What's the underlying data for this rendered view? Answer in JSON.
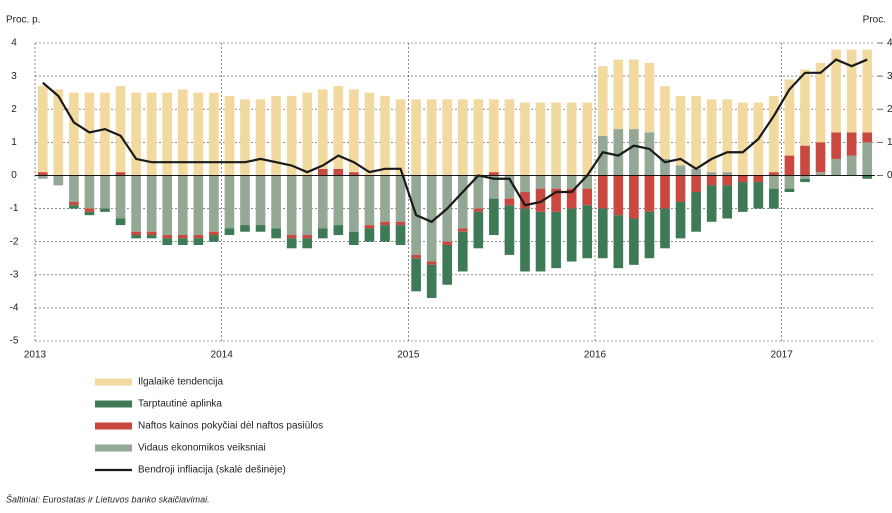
{
  "chart_data": {
    "type": "bar",
    "stacked": true,
    "y_label": "Proc. p.",
    "y2_label": "Proc.",
    "source": "Šaltiniai: Eurostatas ir Lietuvos banko skaičiavimai.",
    "categories": [
      "2013",
      null,
      null,
      null,
      null,
      null,
      null,
      null,
      null,
      null,
      null,
      null,
      "2014",
      null,
      null,
      null,
      null,
      null,
      null,
      null,
      null,
      null,
      null,
      null,
      "2015",
      null,
      null,
      null,
      null,
      null,
      null,
      null,
      null,
      null,
      null,
      null,
      "2016",
      null,
      null,
      null,
      null,
      null,
      null,
      null,
      null,
      null,
      null,
      null,
      "2017",
      null,
      null,
      null,
      null,
      null
    ],
    "ylim": [
      -5,
      4
    ],
    "yticks": [
      -5,
      -4,
      -3,
      -2,
      -1,
      0,
      1,
      2,
      3,
      4
    ],
    "y2lim": [
      -5,
      4
    ],
    "y2ticks": [
      0,
      1,
      2,
      3,
      4
    ],
    "grid": true,
    "series": [
      {
        "name": "Ilgalaikė tendencija",
        "color": "#f2d9a0",
        "values": [
          2.6,
          2.6,
          2.5,
          2.5,
          2.5,
          2.6,
          2.5,
          2.5,
          2.5,
          2.6,
          2.5,
          2.5,
          2.4,
          2.3,
          2.3,
          2.4,
          2.4,
          2.5,
          2.4,
          2.5,
          2.5,
          2.5,
          2.4,
          2.3,
          2.3,
          2.3,
          2.3,
          2.3,
          2.3,
          2.2,
          2.3,
          2.2,
          2.2,
          2.2,
          2.2,
          2.2,
          2.1,
          2.1,
          2.1,
          2.1,
          2.2,
          2.1,
          2.2,
          2.2,
          2.2,
          2.2,
          2.2,
          2.3,
          2.3,
          2.3,
          2.4,
          2.5,
          2.5,
          2.5
        ]
      },
      {
        "name": "Tarptautinė aplinka",
        "color": "#3d7a55",
        "values": [
          0,
          0,
          -0.1,
          -0.1,
          -0.1,
          -0.2,
          -0.1,
          -0.1,
          -0.2,
          -0.2,
          -0.2,
          -0.2,
          -0.2,
          -0.2,
          -0.2,
          -0.3,
          -0.3,
          -0.3,
          -0.3,
          -0.3,
          -0.4,
          -0.4,
          -0.5,
          -0.6,
          -1.0,
          -1.0,
          -1.2,
          -1.2,
          -1.1,
          -1.1,
          -1.5,
          -1.9,
          -1.8,
          -1.7,
          -1.6,
          -1.6,
          -1.5,
          -1.6,
          -1.4,
          -1.4,
          -1.2,
          -1.1,
          -1.2,
          -1.1,
          -1.0,
          -0.9,
          -0.8,
          -0.6,
          -0.1,
          -0.1,
          0,
          0,
          0,
          -0.1
        ]
      },
      {
        "name": "Naftos kainos pokyčiai dėl naftos pasiūlos",
        "color": "#c9483f",
        "values": [
          0.1,
          0,
          -0.1,
          -0.1,
          0,
          0.1,
          -0.1,
          -0.1,
          -0.1,
          -0.1,
          -0.1,
          -0.1,
          0,
          0,
          0,
          0,
          -0.1,
          -0.1,
          0.2,
          0.2,
          0.1,
          -0.1,
          -0.1,
          -0.1,
          -0.1,
          -0.1,
          -0.1,
          -0.1,
          -0.1,
          0.1,
          -0.2,
          -0.5,
          -0.7,
          -0.7,
          -0.6,
          -0.5,
          -1.0,
          -1.2,
          -1.3,
          -1.1,
          -1.0,
          -0.8,
          -0.5,
          -0.3,
          -0.3,
          -0.2,
          -0.2,
          0.1,
          0.6,
          0.9,
          0.9,
          0.8,
          0.7,
          0.3
        ]
      },
      {
        "name": "Vidaus ekonomikos veiksniai",
        "color": "#93a895",
        "values": [
          -0.1,
          -0.3,
          -0.8,
          -1.0,
          -1.0,
          -1.3,
          -1.7,
          -1.7,
          -1.8,
          -1.8,
          -1.8,
          -1.7,
          -1.6,
          -1.5,
          -1.5,
          -1.6,
          -1.8,
          -1.8,
          -1.6,
          -1.5,
          -1.7,
          -1.5,
          -1.4,
          -1.4,
          -2.4,
          -2.6,
          -2.0,
          -1.6,
          -1.0,
          -0.7,
          -0.7,
          -0.5,
          -0.4,
          -0.4,
          -0.4,
          -0.4,
          1.2,
          1.4,
          1.4,
          1.3,
          0.5,
          0.3,
          0.2,
          0.1,
          0.1,
          0,
          0,
          -0.4,
          -0.4,
          -0.1,
          0.1,
          0.5,
          0.6,
          1.0
        ]
      },
      {
        "name": "Bendroji infliacija (skalė dešinėje)",
        "color": "#1a1a1a",
        "type": "line",
        "axis": "y2",
        "values": [
          2.8,
          2.4,
          1.6,
          1.3,
          1.4,
          1.2,
          0.5,
          0.4,
          0.4,
          0.4,
          0.4,
          0.4,
          0.4,
          0.4,
          0.5,
          0.4,
          0.3,
          0.1,
          0.3,
          0.6,
          0.4,
          0.1,
          0.2,
          0.2,
          -1.2,
          -1.4,
          -1.0,
          -0.5,
          0,
          -0.1,
          -0.1,
          -0.9,
          -0.8,
          -0.5,
          -0.5,
          0,
          0.7,
          0.6,
          0.9,
          0.8,
          0.4,
          0.5,
          0.2,
          0.5,
          0.7,
          0.7,
          1.1,
          1.8,
          2.6,
          3.1,
          3.1,
          3.5,
          3.3,
          3.5
        ]
      }
    ]
  }
}
